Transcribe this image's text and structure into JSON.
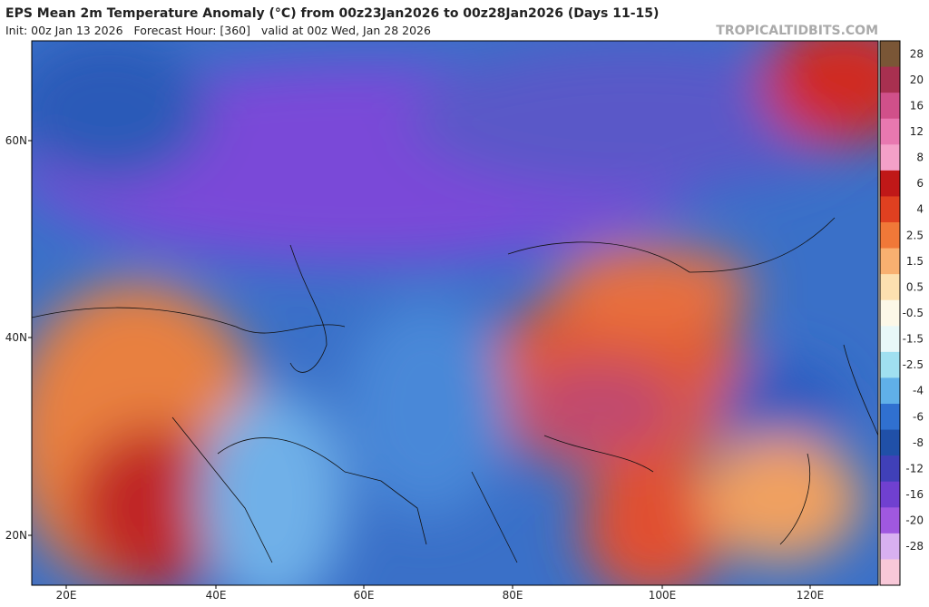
{
  "header": {
    "title": "EPS Mean 2m Temperature Anomaly (°C) from 00z23Jan2026 to 00z28Jan2026 (Days 11-15)",
    "subtitle": "Init: 00z Jan 13 2026   Forecast Hour: [360]   valid at 00z Wed, Jan 28 2026",
    "site": "TROPICALTIDBITS.COM"
  },
  "map": {
    "lat_labels": [
      "60N",
      "40N",
      "20N"
    ],
    "lon_labels": [
      "20E",
      "40E",
      "60E",
      "80E",
      "100E",
      "120E"
    ]
  },
  "colorbar": {
    "labels": [
      "28",
      "20",
      "16",
      "12",
      "8",
      "6",
      "4",
      "2.5",
      "1.5",
      "0.5",
      "-0.5",
      "-1.5",
      "-2.5",
      "-4",
      "-6",
      "-8",
      "-12",
      "-16",
      "-20",
      "-28"
    ],
    "colors": [
      "#7a5636",
      "#a83050",
      "#d0508a",
      "#e878b0",
      "#f4a0c8",
      "#c01818",
      "#e04020",
      "#f07838",
      "#f8b070",
      "#fce0b0",
      "#fcf8e8",
      "#e8f8f8",
      "#a0e0f0",
      "#60b0e8",
      "#3070d0",
      "#2050a8",
      "#4040b8",
      "#7040d0",
      "#a058e0",
      "#d8b0f0",
      "#f8c8d8"
    ]
  }
}
